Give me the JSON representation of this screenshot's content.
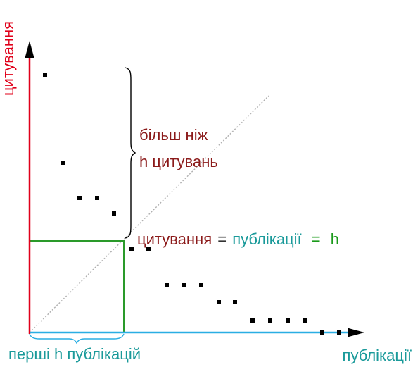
{
  "axes": {
    "y_label": "цитування",
    "x_label": "публікації",
    "y_axis_color": "#e0001a",
    "x_axis_color": "#2aaee3",
    "diagonal_color": "#b0b0b0"
  },
  "brace": {
    "label_line1": "більш ніж",
    "label_line2": "h цитувань",
    "label_color": "#8b1a1a"
  },
  "equation": {
    "citations": "цитування",
    "eq1": "=",
    "publications": "публікації",
    "eq2": "=",
    "h": "h",
    "citations_color": "#8b1a1a",
    "publications_color": "#1a9a9a",
    "h_color": "#1a9a1a"
  },
  "bottom_brace": {
    "label": "перші h публікацій",
    "label_color": "#1a9a9a"
  },
  "square": {
    "color": "#2a9a2a"
  },
  "points": {
    "color": "#000000",
    "count": 18
  }
}
